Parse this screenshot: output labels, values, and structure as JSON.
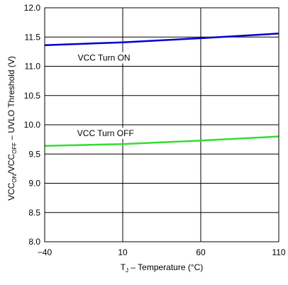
{
  "chart_data": {
    "type": "line",
    "xlabel_main": "T",
    "xlabel_sub": "J",
    "xlabel_rest": " – Temperature (°C)",
    "ylabel_parts": [
      {
        "text": "VCC",
        "sub": false
      },
      {
        "text": "ON",
        "sub": true
      },
      {
        "text": "/VCC",
        "sub": false
      },
      {
        "text": "OFF",
        "sub": true
      },
      {
        "text": " – UVLO Threshold (V)",
        "sub": false
      }
    ],
    "xlim": [
      -40,
      110
    ],
    "ylim": [
      8.0,
      12.0
    ],
    "x_ticks": [
      -40,
      10,
      60,
      110
    ],
    "x_tick_labels": [
      "−40",
      "10",
      "60",
      "110"
    ],
    "y_ticks": [
      8.0,
      8.5,
      9.0,
      9.5,
      10.0,
      10.5,
      11.0,
      11.5,
      12.0
    ],
    "y_tick_labels": [
      "8.0",
      "8.5",
      "9.0",
      "9.5",
      "10.0",
      "10.5",
      "11.0",
      "11.5",
      "12.0"
    ],
    "grid": true,
    "series": [
      {
        "name": "VCC Turn ON",
        "color": "#0000cc",
        "x": [
          -40,
          10,
          60,
          110
        ],
        "y": [
          11.36,
          11.41,
          11.48,
          11.56
        ]
      },
      {
        "name": "VCC Turn OFF",
        "color": "#33dd33",
        "x": [
          -40,
          10,
          60,
          110
        ],
        "y": [
          9.64,
          9.67,
          9.73,
          9.8
        ]
      }
    ]
  }
}
